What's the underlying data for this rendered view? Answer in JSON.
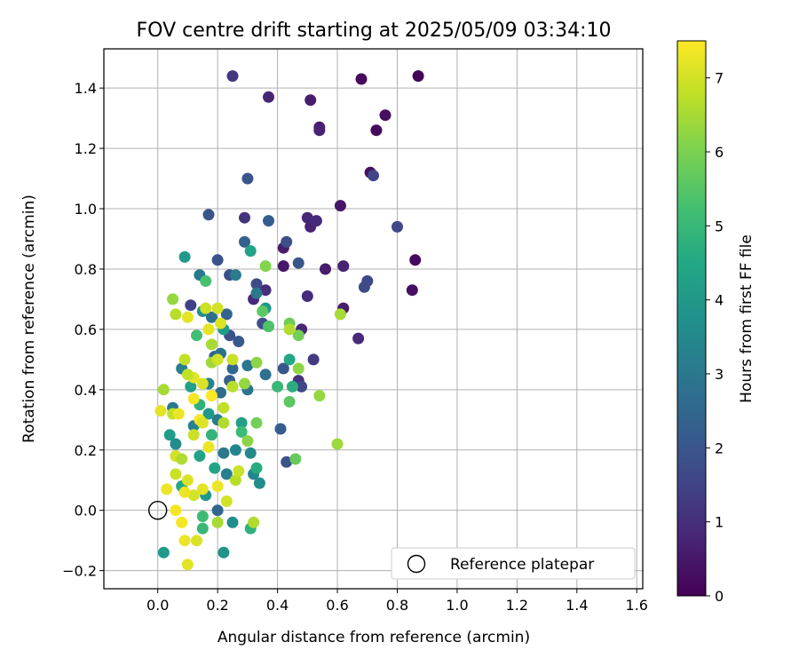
{
  "chart_data": {
    "type": "scatter",
    "title": "FOV centre drift starting at 2025/05/09 03:34:10",
    "xlabel": "Angular distance from reference (arcmin)",
    "ylabel": "Rotation from reference (arcmin)",
    "xlim": [
      -0.18,
      1.62
    ],
    "ylim": [
      -0.26,
      1.53
    ],
    "x_ticks": [
      0.0,
      0.2,
      0.4,
      0.6,
      0.8,
      1.0,
      1.2,
      1.4,
      1.6
    ],
    "x_tick_labels": [
      "0.0",
      "0.2",
      "0.4",
      "0.6",
      "0.8",
      "1.0",
      "1.2",
      "1.4",
      "1.6"
    ],
    "y_ticks": [
      -0.2,
      0.0,
      0.2,
      0.4,
      0.6,
      0.8,
      1.0,
      1.2,
      1.4
    ],
    "y_tick_labels": [
      "−0.2",
      "0.0",
      "0.2",
      "0.4",
      "0.6",
      "0.8",
      "1.0",
      "1.2",
      "1.4"
    ],
    "grid": true,
    "colormap": "viridis",
    "colorbar": {
      "label": "Hours from first FF file",
      "range": [
        0,
        7.5
      ],
      "ticks": [
        0,
        1,
        2,
        3,
        4,
        5,
        6,
        7
      ],
      "tick_labels": [
        "0",
        "1",
        "2",
        "3",
        "4",
        "5",
        "6",
        "7"
      ]
    },
    "legend": {
      "position": "lower-right",
      "entries": [
        "Reference platepar"
      ]
    },
    "reference_point": {
      "name": "Reference platepar",
      "x": 0.0,
      "y": 0.0
    },
    "series": [
      {
        "points": [
          [
            0.87,
            1.44,
            0.1
          ],
          [
            0.68,
            1.43,
            0.2
          ],
          [
            0.76,
            1.31,
            0.3
          ],
          [
            0.73,
            1.26,
            0.2
          ],
          [
            0.71,
            1.12,
            0.3
          ],
          [
            0.86,
            0.83,
            0.2
          ],
          [
            0.85,
            0.73,
            0.3
          ],
          [
            0.61,
            1.01,
            0.4
          ],
          [
            0.51,
            1.36,
            0.6
          ],
          [
            0.54,
            1.27,
            0.6
          ],
          [
            0.54,
            1.26,
            0.7
          ],
          [
            0.37,
            1.37,
            0.8
          ],
          [
            0.25,
            1.44,
            1.2
          ],
          [
            0.51,
            0.94,
            0.7
          ],
          [
            0.5,
            0.97,
            0.8
          ],
          [
            0.53,
            0.96,
            0.9
          ],
          [
            0.42,
            0.81,
            0.5
          ],
          [
            0.42,
            0.87,
            0.6
          ],
          [
            0.56,
            0.8,
            0.6
          ],
          [
            0.62,
            0.81,
            0.7
          ],
          [
            0.62,
            0.67,
            0.6
          ],
          [
            0.67,
            0.57,
            0.9
          ],
          [
            0.5,
            0.71,
            0.9
          ],
          [
            0.36,
            0.73,
            1.0
          ],
          [
            0.29,
            0.97,
            1.1
          ],
          [
            0.32,
            0.7,
            0.9
          ],
          [
            0.48,
            0.6,
            0.8
          ],
          [
            0.37,
            0.61,
            1.0
          ],
          [
            0.47,
            0.43,
            1.1
          ],
          [
            0.72,
            1.11,
            1.5
          ],
          [
            0.8,
            0.94,
            1.6
          ],
          [
            0.7,
            0.76,
            1.6
          ],
          [
            0.69,
            0.74,
            1.7
          ],
          [
            0.52,
            0.5,
            1.3
          ],
          [
            0.43,
            0.89,
            1.8
          ],
          [
            0.47,
            0.82,
            2.0
          ],
          [
            0.3,
            1.1,
            2.0
          ],
          [
            0.37,
            0.96,
            2.2
          ],
          [
            0.17,
            0.98,
            2.0
          ],
          [
            0.2,
            0.83,
            1.9
          ],
          [
            0.24,
            0.78,
            1.8
          ],
          [
            0.33,
            0.75,
            1.7
          ],
          [
            0.35,
            0.62,
            1.8
          ],
          [
            0.29,
            0.89,
            2.3
          ],
          [
            0.11,
            0.68,
            1.4
          ],
          [
            0.24,
            0.58,
            1.9
          ],
          [
            0.27,
            0.56,
            2.1
          ],
          [
            0.23,
            0.65,
            2.4
          ],
          [
            0.42,
            0.47,
            2.0
          ],
          [
            0.41,
            0.27,
            2.2
          ],
          [
            0.43,
            0.16,
            1.9
          ],
          [
            0.48,
            0.41,
            1.6
          ],
          [
            0.25,
            0.47,
            2.5
          ],
          [
            0.21,
            0.39,
            2.6
          ],
          [
            0.19,
            0.51,
            2.4
          ],
          [
            0.24,
            0.43,
            2.3
          ],
          [
            0.18,
            0.64,
            2.7
          ],
          [
            0.2,
            0.0,
            2.5
          ],
          [
            0.21,
            0.52,
            2.8
          ],
          [
            0.36,
            0.45,
            2.8
          ],
          [
            0.3,
            0.48,
            2.9
          ],
          [
            0.33,
            0.72,
            3.0
          ],
          [
            0.14,
            0.78,
            3.0
          ],
          [
            0.26,
            0.78,
            3.1
          ],
          [
            0.3,
            0.4,
            2.9
          ],
          [
            0.2,
            0.3,
            3.1
          ],
          [
            0.22,
            0.19,
            3.0
          ],
          [
            0.23,
            0.12,
            3.2
          ],
          [
            0.32,
            0.12,
            3.4
          ],
          [
            0.05,
            0.34,
            3.0
          ],
          [
            0.08,
            0.47,
            3.2
          ],
          [
            0.17,
            0.42,
            3.3
          ],
          [
            0.12,
            0.28,
            3.3
          ],
          [
            0.26,
            0.2,
            3.4
          ],
          [
            0.06,
            0.22,
            3.6
          ],
          [
            0.31,
            0.19,
            3.5
          ],
          [
            0.34,
            0.09,
            3.6
          ],
          [
            0.15,
            0.66,
            3.7
          ],
          [
            0.36,
            0.67,
            4.0
          ],
          [
            0.31,
            0.86,
            4.3
          ],
          [
            0.09,
            0.84,
            4.0
          ],
          [
            0.22,
            0.6,
            4.1
          ],
          [
            0.17,
            0.32,
            4.0
          ],
          [
            0.11,
            0.41,
            4.2
          ],
          [
            0.28,
            0.29,
            4.2
          ],
          [
            0.16,
            0.05,
            3.9
          ],
          [
            0.25,
            -0.04,
            3.6
          ],
          [
            0.22,
            -0.14,
            3.8
          ],
          [
            0.02,
            -0.14,
            4.0
          ],
          [
            0.04,
            0.25,
            4.1
          ],
          [
            0.14,
            0.18,
            4.3
          ],
          [
            0.19,
            0.14,
            4.4
          ],
          [
            0.08,
            0.08,
            4.5
          ],
          [
            0.33,
            0.14,
            4.6
          ],
          [
            0.31,
            -0.06,
            4.8
          ],
          [
            0.44,
            0.5,
            4.5
          ],
          [
            0.45,
            0.41,
            4.7
          ],
          [
            0.14,
            0.35,
            4.8
          ],
          [
            0.18,
            0.25,
            4.9
          ],
          [
            0.15,
            -0.06,
            5.0
          ],
          [
            0.28,
            0.26,
            5.1
          ],
          [
            0.15,
            -0.02,
            5.1
          ],
          [
            0.13,
            0.58,
            5.2
          ],
          [
            0.16,
            0.76,
            5.3
          ],
          [
            0.37,
            0.61,
            5.4
          ],
          [
            0.4,
            0.41,
            5.0
          ],
          [
            0.44,
            0.36,
            5.6
          ],
          [
            0.46,
            0.17,
            5.7
          ],
          [
            0.35,
            0.66,
            5.6
          ],
          [
            0.44,
            0.62,
            5.8
          ],
          [
            0.36,
            0.81,
            6.1
          ],
          [
            0.47,
            0.58,
            5.9
          ],
          [
            0.33,
            0.29,
            5.9
          ],
          [
            0.47,
            0.47,
            6.2
          ],
          [
            0.54,
            0.38,
            6.3
          ],
          [
            0.6,
            0.22,
            6.4
          ],
          [
            0.61,
            0.65,
            6.5
          ],
          [
            0.44,
            0.6,
            6.6
          ],
          [
            0.33,
            0.49,
            6.2
          ],
          [
            0.05,
            0.7,
            6.3
          ],
          [
            0.02,
            0.4,
            6.5
          ],
          [
            0.06,
            0.65,
            6.7
          ],
          [
            0.16,
            0.67,
            6.9
          ],
          [
            0.2,
            0.67,
            7.0
          ],
          [
            0.21,
            0.62,
            7.1
          ],
          [
            0.1,
            0.64,
            7.2
          ],
          [
            0.09,
            0.5,
            6.8
          ],
          [
            0.1,
            0.1,
            7.1
          ],
          [
            0.12,
            0.05,
            7.0
          ],
          [
            0.15,
            0.07,
            7.2
          ],
          [
            0.2,
            0.08,
            7.3
          ],
          [
            0.26,
            0.1,
            6.7
          ],
          [
            0.27,
            0.13,
            6.9
          ],
          [
            0.32,
            -0.04,
            6.6
          ],
          [
            0.2,
            -0.04,
            6.5
          ],
          [
            0.08,
            -0.04,
            7.4
          ],
          [
            0.09,
            -0.1,
            7.3
          ],
          [
            0.13,
            -0.1,
            7.1
          ],
          [
            0.1,
            -0.18,
            7.2
          ],
          [
            0.06,
            0.0,
            7.4
          ],
          [
            0.03,
            0.07,
            7.3
          ],
          [
            0.01,
            0.33,
            7.2
          ],
          [
            0.05,
            0.32,
            6.8
          ],
          [
            0.06,
            0.18,
            7.0
          ],
          [
            0.12,
            0.25,
            6.9
          ],
          [
            0.17,
            0.21,
            7.3
          ],
          [
            0.12,
            0.37,
            7.4
          ],
          [
            0.15,
            0.42,
            7.1
          ],
          [
            0.18,
            0.38,
            7.5
          ],
          [
            0.12,
            0.44,
            7.2
          ],
          [
            0.14,
            0.3,
            7.4
          ],
          [
            0.15,
            0.29,
            7.1
          ],
          [
            0.22,
            0.34,
            6.8
          ],
          [
            0.25,
            0.41,
            6.7
          ],
          [
            0.22,
            0.29,
            6.6
          ],
          [
            0.25,
            0.5,
            6.9
          ],
          [
            0.18,
            0.49,
            6.4
          ],
          [
            0.29,
            0.42,
            6.3
          ],
          [
            0.3,
            0.23,
            6.2
          ],
          [
            0.23,
            0.03,
            7.0
          ],
          [
            0.09,
            0.06,
            7.3
          ],
          [
            0.06,
            0.12,
            6.9
          ],
          [
            0.07,
            0.32,
            7.3
          ],
          [
            0.08,
            0.17,
            6.6
          ],
          [
            0.18,
            0.55,
            6.5
          ],
          [
            0.1,
            0.45,
            6.8
          ],
          [
            0.2,
            0.5,
            7.0
          ],
          [
            0.17,
            0.6,
            7.2
          ]
        ]
      }
    ]
  }
}
